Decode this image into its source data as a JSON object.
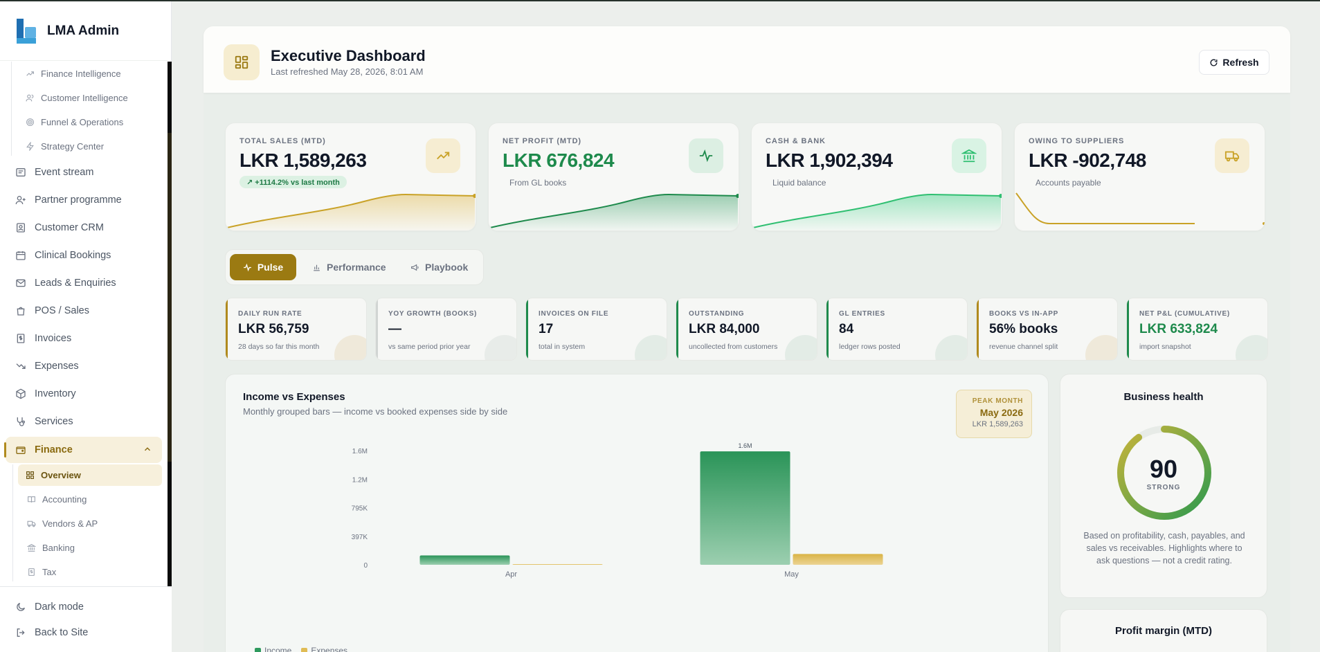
{
  "app": {
    "name": "LMA Admin"
  },
  "sidebar": {
    "intel_items": [
      {
        "label": "Finance Intelligence",
        "icon": "trend-up-icon"
      },
      {
        "label": "Customer Intelligence",
        "icon": "users-icon"
      },
      {
        "label": "Funnel & Operations",
        "icon": "target-icon"
      },
      {
        "label": "Strategy Center",
        "icon": "bolt-icon"
      }
    ],
    "items": [
      {
        "label": "Event stream",
        "icon": "stream-icon"
      },
      {
        "label": "Partner programme",
        "icon": "user-plus-icon"
      },
      {
        "label": "Customer CRM",
        "icon": "contact-icon"
      },
      {
        "label": "Clinical Bookings",
        "icon": "calendar-icon"
      },
      {
        "label": "Leads & Enquiries",
        "icon": "mail-icon"
      },
      {
        "label": "POS / Sales",
        "icon": "bag-icon"
      },
      {
        "label": "Invoices",
        "icon": "invoice-icon"
      },
      {
        "label": "Expenses",
        "icon": "trend-down-icon"
      },
      {
        "label": "Inventory",
        "icon": "box-icon"
      },
      {
        "label": "Services",
        "icon": "stethoscope-icon"
      }
    ],
    "finance": {
      "label": "Finance",
      "children": [
        {
          "label": "Overview",
          "icon": "grid-icon"
        },
        {
          "label": "Accounting",
          "icon": "book-icon"
        },
        {
          "label": "Vendors & AP",
          "icon": "truck-icon"
        },
        {
          "label": "Banking",
          "icon": "bank-icon"
        },
        {
          "label": "Tax",
          "icon": "receipt-icon"
        }
      ]
    },
    "bottom": {
      "dark_mode": "Dark mode",
      "back": "Back to Site"
    }
  },
  "header": {
    "title": "Executive Dashboard",
    "subtitle": "Last refreshed May 28, 2026, 8:01 AM",
    "refresh_label": "Refresh"
  },
  "kpis": [
    {
      "label": "TOTAL SALES (MTD)",
      "value": "LKR 1,589,263",
      "badge": "↗ +1114.2% vs last month",
      "note": "",
      "icon": "trend-up-icon",
      "accent": "#c9a227"
    },
    {
      "label": "NET PROFIT (MTD)",
      "value": "LKR 676,824",
      "badge": "",
      "note": "From GL books",
      "icon": "pulse-icon",
      "accent": "#1e8a4c"
    },
    {
      "label": "CASH & BANK",
      "value": "LKR 1,902,394",
      "badge": "",
      "note": "Liquid balance",
      "icon": "bank-icon",
      "accent": "#2fbf71"
    },
    {
      "label": "OWING TO SUPPLIERS",
      "value": "LKR -902,748",
      "badge": "",
      "note": "Accounts payable",
      "icon": "truck-icon",
      "accent": "#c9a227"
    }
  ],
  "tabs": [
    {
      "label": "Pulse",
      "icon": "pulse-icon"
    },
    {
      "label": "Performance",
      "icon": "bar-chart-icon"
    },
    {
      "label": "Playbook",
      "icon": "megaphone-icon"
    }
  ],
  "stats": [
    {
      "label": "DAILY RUN RATE",
      "value": "LKR 56,759",
      "note": "28 days so far this month",
      "accent": "#b08a1e"
    },
    {
      "label": "YOY GROWTH (BOOKS)",
      "value": "—",
      "note": "vs same period prior year",
      "accent": "#9aa3a0"
    },
    {
      "label": "INVOICES ON FILE",
      "value": "17",
      "note": "total in system",
      "accent": "#1e8a4c"
    },
    {
      "label": "OUTSTANDING",
      "value": "LKR 84,000",
      "note": "uncollected from customers",
      "accent": "#1e8a4c"
    },
    {
      "label": "GL ENTRIES",
      "value": "84",
      "note": "ledger rows posted",
      "accent": "#1e8a4c"
    },
    {
      "label": "BOOKS VS IN-APP",
      "value": "56% books",
      "note": "revenue channel split",
      "accent": "#b08a1e"
    },
    {
      "label": "NET P&L (CUMULATIVE)",
      "value": "LKR 633,824",
      "note": "import snapshot",
      "accent": "#1e8a4c"
    }
  ],
  "chart": {
    "title": "Income vs Expenses",
    "subtitle": "Monthly grouped bars — income vs booked expenses side by side",
    "peak": {
      "label": "PEAK MONTH",
      "month": "May 2026",
      "value": "LKR 1,589,263"
    },
    "legend": [
      "Income",
      "Expenses"
    ]
  },
  "chart_data": {
    "type": "bar",
    "categories": [
      "Apr",
      "May"
    ],
    "series": [
      {
        "name": "Income",
        "values": [
          0.131,
          1.589
        ],
        "color": "#2e9a5e"
      },
      {
        "name": "Expenses",
        "values": [
          0.004,
          0.152
        ],
        "color": "#e0bc55"
      }
    ],
    "y_ticks": [
      "0",
      "397K",
      "795K",
      "1.2M",
      "1.6M"
    ],
    "ylim": [
      0,
      1.6
    ],
    "unit": "millions LKR",
    "bar_labels": {
      "May": "1.6M"
    }
  },
  "health": {
    "title": "Business health",
    "score": "90",
    "score_fraction": 0.9,
    "label": "STRONG",
    "description": "Based on profitability, cash, payables, and sales vs receivables. Highlights where to ask questions — not a credit rating."
  },
  "margin": {
    "title": "Profit margin (MTD)"
  }
}
